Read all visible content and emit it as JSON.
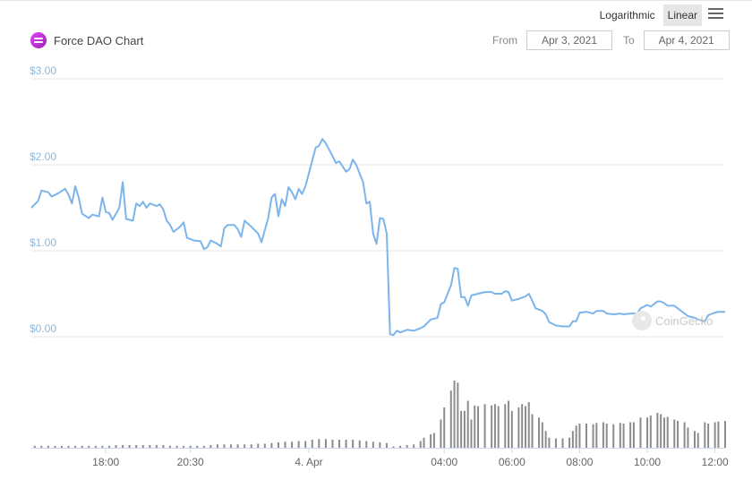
{
  "header": {
    "title": "Force DAO Chart",
    "scale_options": [
      "Logarithmic",
      "Linear"
    ],
    "active_scale": "Linear",
    "from_label": "From",
    "from_value": "Apr 3, 2021",
    "to_label": "To",
    "to_value": "Apr 4, 2021",
    "watermark": "CoinGecko"
  },
  "chart_data": {
    "type": "line",
    "title": "Force DAO Chart",
    "ylabel": "",
    "xlabel": "",
    "ylim": [
      0,
      3
    ],
    "y_ticks": [
      "$3.00",
      "$2.00",
      "$1.00",
      "$0.00"
    ],
    "y_tick_values": [
      3,
      2,
      1,
      0
    ],
    "x_ticks": [
      "18:00",
      "20:30",
      "4. Apr",
      "04:00",
      "06:00",
      "08:00",
      "10:00",
      "12:00"
    ],
    "x_tick_hours": [
      18,
      20.5,
      24,
      28,
      30,
      32,
      34,
      36
    ],
    "x_range_hours": [
      15.8,
      36.3
    ],
    "line_color": "#7cb5ec",
    "volume_color": "#8c8c8c",
    "price_series": [
      [
        15.8,
        1.5
      ],
      [
        16.0,
        1.58
      ],
      [
        16.1,
        1.7
      ],
      [
        16.3,
        1.68
      ],
      [
        16.4,
        1.63
      ],
      [
        16.6,
        1.67
      ],
      [
        16.8,
        1.72
      ],
      [
        16.9,
        1.65
      ],
      [
        17.0,
        1.55
      ],
      [
        17.1,
        1.75
      ],
      [
        17.2,
        1.62
      ],
      [
        17.3,
        1.43
      ],
      [
        17.5,
        1.38
      ],
      [
        17.6,
        1.42
      ],
      [
        17.8,
        1.4
      ],
      [
        17.9,
        1.62
      ],
      [
        18.0,
        1.45
      ],
      [
        18.1,
        1.44
      ],
      [
        18.2,
        1.36
      ],
      [
        18.4,
        1.5
      ],
      [
        18.5,
        1.8
      ],
      [
        18.6,
        1.37
      ],
      [
        18.8,
        1.35
      ],
      [
        18.9,
        1.55
      ],
      [
        19.0,
        1.52
      ],
      [
        19.1,
        1.57
      ],
      [
        19.2,
        1.5
      ],
      [
        19.3,
        1.55
      ],
      [
        19.5,
        1.52
      ],
      [
        19.6,
        1.54
      ],
      [
        19.7,
        1.48
      ],
      [
        19.8,
        1.35
      ],
      [
        19.9,
        1.3
      ],
      [
        20.0,
        1.22
      ],
      [
        20.2,
        1.28
      ],
      [
        20.3,
        1.33
      ],
      [
        20.4,
        1.15
      ],
      [
        20.6,
        1.12
      ],
      [
        20.8,
        1.11
      ],
      [
        20.9,
        1.02
      ],
      [
        21.0,
        1.04
      ],
      [
        21.1,
        1.12
      ],
      [
        21.3,
        1.08
      ],
      [
        21.4,
        1.05
      ],
      [
        21.5,
        1.26
      ],
      [
        21.6,
        1.3
      ],
      [
        21.8,
        1.3
      ],
      [
        21.9,
        1.25
      ],
      [
        22.0,
        1.16
      ],
      [
        22.1,
        1.35
      ],
      [
        22.3,
        1.28
      ],
      [
        22.4,
        1.24
      ],
      [
        22.5,
        1.2
      ],
      [
        22.6,
        1.1
      ],
      [
        22.8,
        1.38
      ],
      [
        22.9,
        1.62
      ],
      [
        23.0,
        1.66
      ],
      [
        23.1,
        1.4
      ],
      [
        23.2,
        1.6
      ],
      [
        23.3,
        1.52
      ],
      [
        23.4,
        1.74
      ],
      [
        23.5,
        1.68
      ],
      [
        23.6,
        1.6
      ],
      [
        23.7,
        1.72
      ],
      [
        23.8,
        1.66
      ],
      [
        23.9,
        1.75
      ],
      [
        24.0,
        1.9
      ],
      [
        24.2,
        2.2
      ],
      [
        24.3,
        2.22
      ],
      [
        24.4,
        2.3
      ],
      [
        24.5,
        2.25
      ],
      [
        24.7,
        2.1
      ],
      [
        24.8,
        2.02
      ],
      [
        24.9,
        2.04
      ],
      [
        25.0,
        1.98
      ],
      [
        25.1,
        1.92
      ],
      [
        25.2,
        1.95
      ],
      [
        25.3,
        2.06
      ],
      [
        25.4,
        2.0
      ],
      [
        25.6,
        1.8
      ],
      [
        25.7,
        1.55
      ],
      [
        25.8,
        1.57
      ],
      [
        25.9,
        1.2
      ],
      [
        26.0,
        1.08
      ],
      [
        26.1,
        1.38
      ],
      [
        26.2,
        1.37
      ],
      [
        26.3,
        1.2
      ],
      [
        26.4,
        0.03
      ],
      [
        26.5,
        0.02
      ],
      [
        26.6,
        0.07
      ],
      [
        26.7,
        0.05
      ],
      [
        26.9,
        0.08
      ],
      [
        27.1,
        0.07
      ],
      [
        27.3,
        0.1
      ],
      [
        27.4,
        0.12
      ],
      [
        27.6,
        0.2
      ],
      [
        27.8,
        0.22
      ],
      [
        27.9,
        0.38
      ],
      [
        28.0,
        0.4
      ],
      [
        28.2,
        0.6
      ],
      [
        28.3,
        0.8
      ],
      [
        28.4,
        0.79
      ],
      [
        28.5,
        0.46
      ],
      [
        28.6,
        0.46
      ],
      [
        28.7,
        0.36
      ],
      [
        28.8,
        0.48
      ],
      [
        29.0,
        0.5
      ],
      [
        29.2,
        0.52
      ],
      [
        29.4,
        0.52
      ],
      [
        29.5,
        0.5
      ],
      [
        29.7,
        0.5
      ],
      [
        29.8,
        0.53
      ],
      [
        29.9,
        0.52
      ],
      [
        30.0,
        0.42
      ],
      [
        30.2,
        0.44
      ],
      [
        30.4,
        0.47
      ],
      [
        30.5,
        0.5
      ],
      [
        30.6,
        0.42
      ],
      [
        30.7,
        0.33
      ],
      [
        30.9,
        0.3
      ],
      [
        31.0,
        0.26
      ],
      [
        31.1,
        0.17
      ],
      [
        31.3,
        0.13
      ],
      [
        31.5,
        0.12
      ],
      [
        31.7,
        0.12
      ],
      [
        31.8,
        0.18
      ],
      [
        31.9,
        0.18
      ],
      [
        32.0,
        0.28
      ],
      [
        32.2,
        0.29
      ],
      [
        32.4,
        0.27
      ],
      [
        32.5,
        0.3
      ],
      [
        32.7,
        0.3
      ],
      [
        32.8,
        0.27
      ],
      [
        33.0,
        0.26
      ],
      [
        33.2,
        0.27
      ],
      [
        33.3,
        0.26
      ],
      [
        33.5,
        0.27
      ],
      [
        33.7,
        0.27
      ],
      [
        33.8,
        0.33
      ],
      [
        34.0,
        0.37
      ],
      [
        34.1,
        0.35
      ],
      [
        34.3,
        0.41
      ],
      [
        34.4,
        0.41
      ],
      [
        34.5,
        0.39
      ],
      [
        34.6,
        0.36
      ],
      [
        34.8,
        0.36
      ],
      [
        34.9,
        0.33
      ],
      [
        35.1,
        0.27
      ],
      [
        35.2,
        0.24
      ],
      [
        35.4,
        0.22
      ],
      [
        35.5,
        0.2
      ],
      [
        35.7,
        0.18
      ],
      [
        35.8,
        0.25
      ],
      [
        36.0,
        0.28
      ],
      [
        36.1,
        0.29
      ],
      [
        36.3,
        0.29
      ]
    ],
    "volume_scale": [
      0,
      1
    ],
    "volume_series": [
      [
        15.9,
        0.03
      ],
      [
        16.1,
        0.03
      ],
      [
        16.3,
        0.03
      ],
      [
        16.5,
        0.03
      ],
      [
        16.7,
        0.03
      ],
      [
        16.9,
        0.03
      ],
      [
        17.1,
        0.03
      ],
      [
        17.3,
        0.03
      ],
      [
        17.5,
        0.03
      ],
      [
        17.7,
        0.03
      ],
      [
        17.9,
        0.03
      ],
      [
        18.1,
        0.03
      ],
      [
        18.3,
        0.04
      ],
      [
        18.5,
        0.04
      ],
      [
        18.7,
        0.04
      ],
      [
        18.9,
        0.04
      ],
      [
        19.1,
        0.04
      ],
      [
        19.3,
        0.04
      ],
      [
        19.5,
        0.04
      ],
      [
        19.7,
        0.04
      ],
      [
        19.9,
        0.03
      ],
      [
        20.1,
        0.03
      ],
      [
        20.3,
        0.03
      ],
      [
        20.5,
        0.03
      ],
      [
        20.7,
        0.03
      ],
      [
        20.9,
        0.03
      ],
      [
        21.1,
        0.04
      ],
      [
        21.3,
        0.05
      ],
      [
        21.5,
        0.05
      ],
      [
        21.7,
        0.05
      ],
      [
        21.9,
        0.05
      ],
      [
        22.1,
        0.05
      ],
      [
        22.3,
        0.05
      ],
      [
        22.5,
        0.06
      ],
      [
        22.7,
        0.06
      ],
      [
        22.9,
        0.07
      ],
      [
        23.1,
        0.08
      ],
      [
        23.3,
        0.09
      ],
      [
        23.5,
        0.09
      ],
      [
        23.7,
        0.1
      ],
      [
        23.9,
        0.1
      ],
      [
        24.1,
        0.12
      ],
      [
        24.3,
        0.13
      ],
      [
        24.5,
        0.13
      ],
      [
        24.7,
        0.12
      ],
      [
        24.9,
        0.12
      ],
      [
        25.1,
        0.12
      ],
      [
        25.3,
        0.12
      ],
      [
        25.5,
        0.11
      ],
      [
        25.7,
        0.1
      ],
      [
        25.9,
        0.09
      ],
      [
        26.1,
        0.08
      ],
      [
        26.3,
        0.07
      ],
      [
        26.5,
        0.02
      ],
      [
        26.7,
        0.03
      ],
      [
        26.9,
        0.04
      ],
      [
        27.1,
        0.05
      ],
      [
        27.3,
        0.1
      ],
      [
        27.4,
        0.15
      ],
      [
        27.6,
        0.2
      ],
      [
        27.7,
        0.22
      ],
      [
        27.9,
        0.42
      ],
      [
        28.0,
        0.6
      ],
      [
        28.2,
        0.85
      ],
      [
        28.3,
        1.0
      ],
      [
        28.4,
        0.97
      ],
      [
        28.5,
        0.55
      ],
      [
        28.6,
        0.55
      ],
      [
        28.7,
        0.7
      ],
      [
        28.8,
        0.42
      ],
      [
        28.9,
        0.63
      ],
      [
        29.0,
        0.62
      ],
      [
        29.2,
        0.65
      ],
      [
        29.4,
        0.63
      ],
      [
        29.5,
        0.65
      ],
      [
        29.6,
        0.62
      ],
      [
        29.8,
        0.65
      ],
      [
        29.9,
        0.7
      ],
      [
        30.0,
        0.55
      ],
      [
        30.2,
        0.6
      ],
      [
        30.3,
        0.65
      ],
      [
        30.4,
        0.62
      ],
      [
        30.5,
        0.68
      ],
      [
        30.6,
        0.5
      ],
      [
        30.8,
        0.45
      ],
      [
        30.9,
        0.38
      ],
      [
        31.0,
        0.25
      ],
      [
        31.1,
        0.15
      ],
      [
        31.3,
        0.14
      ],
      [
        31.5,
        0.14
      ],
      [
        31.7,
        0.15
      ],
      [
        31.8,
        0.25
      ],
      [
        31.9,
        0.33
      ],
      [
        32.0,
        0.36
      ],
      [
        32.2,
        0.36
      ],
      [
        32.4,
        0.35
      ],
      [
        32.5,
        0.37
      ],
      [
        32.7,
        0.38
      ],
      [
        32.8,
        0.36
      ],
      [
        33.0,
        0.35
      ],
      [
        33.2,
        0.37
      ],
      [
        33.3,
        0.36
      ],
      [
        33.5,
        0.38
      ],
      [
        33.6,
        0.38
      ],
      [
        33.8,
        0.45
      ],
      [
        34.0,
        0.45
      ],
      [
        34.1,
        0.48
      ],
      [
        34.3,
        0.52
      ],
      [
        34.4,
        0.5
      ],
      [
        34.5,
        0.45
      ],
      [
        34.6,
        0.46
      ],
      [
        34.8,
        0.42
      ],
      [
        34.9,
        0.4
      ],
      [
        35.1,
        0.38
      ],
      [
        35.2,
        0.3
      ],
      [
        35.4,
        0.25
      ],
      [
        35.5,
        0.22
      ],
      [
        35.7,
        0.38
      ],
      [
        35.8,
        0.36
      ],
      [
        36.0,
        0.38
      ],
      [
        36.1,
        0.39
      ],
      [
        36.3,
        0.4
      ]
    ]
  }
}
